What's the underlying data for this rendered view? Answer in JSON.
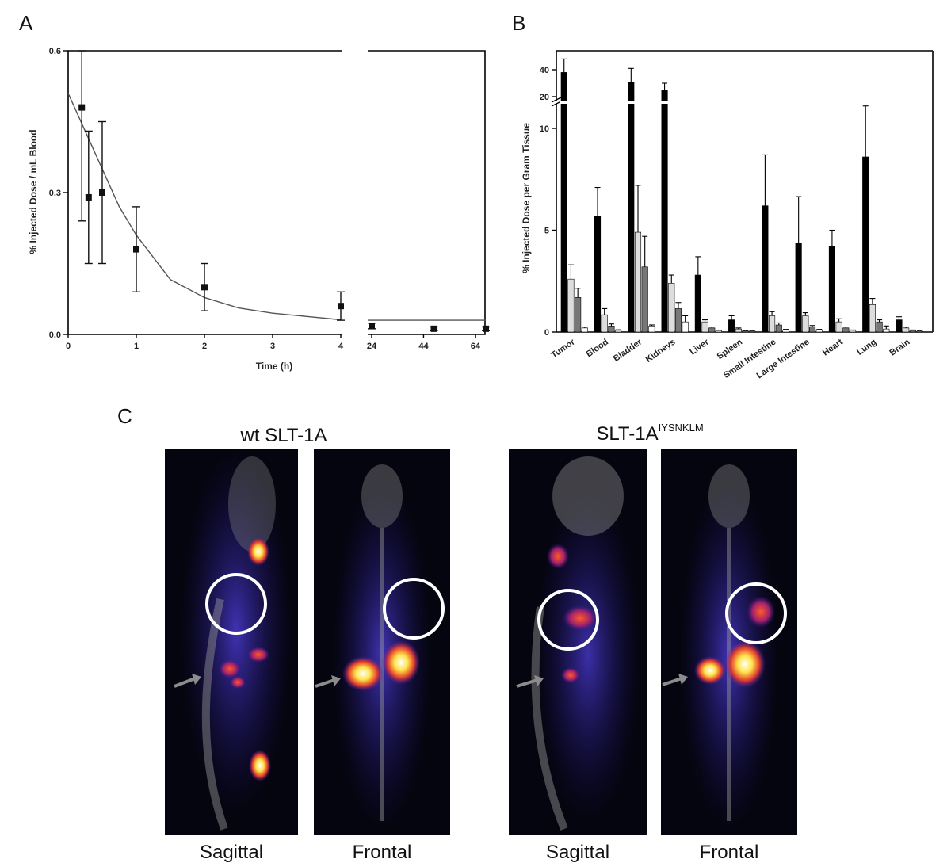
{
  "panels": {
    "a": "A",
    "b": "B",
    "c": "C"
  },
  "chart_data": [
    {
      "type": "scatter",
      "panel": "A",
      "xlabel": "Time (h)",
      "ylabel": "% Injected Dose / mL Blood",
      "ylim": [
        0,
        0.6
      ],
      "y_ticks": [
        "0.0",
        "0.3",
        "0.6"
      ],
      "x_ticks_left": [
        "0",
        "1",
        "2",
        "3",
        "4"
      ],
      "x_ticks_right": [
        "24",
        "44",
        "64"
      ],
      "x_axis_break": "between 4 and 24 h",
      "series": [
        {
          "x": [
            0.2,
            0.3,
            0.5,
            1,
            2,
            4,
            24,
            48,
            68
          ],
          "y": [
            0.48,
            0.29,
            0.3,
            0.18,
            0.1,
            0.06,
            0.018,
            0.012,
            0.012
          ],
          "error": [
            0.24,
            0.14,
            0.15,
            0.09,
            0.05,
            0.03,
            0.006,
            0.004,
            0.004
          ]
        }
      ],
      "fit_curve": {
        "x": [
          0,
          0.25,
          0.5,
          0.75,
          1,
          1.5,
          2,
          2.5,
          3,
          3.5,
          4,
          24,
          68
        ],
        "y": [
          0.51,
          0.43,
          0.35,
          0.27,
          0.21,
          0.116,
          0.078,
          0.056,
          0.045,
          0.038,
          0.031,
          0.03,
          0.03
        ]
      },
      "grid": false
    },
    {
      "type": "bar",
      "panel": "B",
      "ylabel": "% Injected Dose per Gram Tissue",
      "y_ticks_lower": [
        "0",
        "5",
        "10"
      ],
      "y_ticks_upper": [
        "20",
        "40"
      ],
      "y_axis_break": "between 12 and 15",
      "categories": [
        "Tumor",
        "Blood",
        "Bladder",
        "Kidneys",
        "Liver",
        "Spleen",
        "Small Intestine",
        "Large Intestine",
        "Heart",
        "Lung",
        "Brain"
      ],
      "series": [
        {
          "color": "#000000",
          "values": [
            38,
            5.7,
            31,
            25,
            2.8,
            0.6,
            6.2,
            4.35,
            4.2,
            8.6,
            0.6
          ],
          "error": [
            10,
            1.4,
            10,
            5,
            0.9,
            0.2,
            2.5,
            2.3,
            0.8,
            2.5,
            0.15
          ]
        },
        {
          "color": "#dddddd",
          "values": [
            2.6,
            0.85,
            4.9,
            2.4,
            0.5,
            0.15,
            0.8,
            0.8,
            0.5,
            1.35,
            0.2
          ],
          "error": [
            0.7,
            0.3,
            2.3,
            0.4,
            0.1,
            0.05,
            0.2,
            0.15,
            0.15,
            0.3,
            0.05
          ]
        },
        {
          "color": "#777777",
          "values": [
            1.7,
            0.3,
            3.2,
            1.15,
            0.2,
            0.06,
            0.35,
            0.25,
            0.2,
            0.5,
            0.08
          ],
          "error": [
            0.45,
            0.1,
            1.5,
            0.3,
            0.05,
            0.02,
            0.1,
            0.07,
            0.05,
            0.1,
            0.02
          ]
        },
        {
          "color": "#ffffff",
          "values": [
            0.2,
            0.08,
            0.3,
            0.5,
            0.07,
            0.04,
            0.1,
            0.1,
            0.08,
            0.15,
            0.04
          ],
          "error": [
            0.05,
            0.03,
            0.05,
            0.3,
            0.02,
            0.01,
            0.03,
            0.03,
            0.02,
            0.15,
            0.01
          ]
        }
      ],
      "grid": false
    }
  ],
  "imaging": {
    "group1_title": "wt SLT-1A",
    "group2_title_base": "SLT-1A",
    "group2_title_sup": "IYSNKLM",
    "captions": [
      "Sagittal",
      "Frontal",
      "Sagittal",
      "Frontal"
    ]
  }
}
